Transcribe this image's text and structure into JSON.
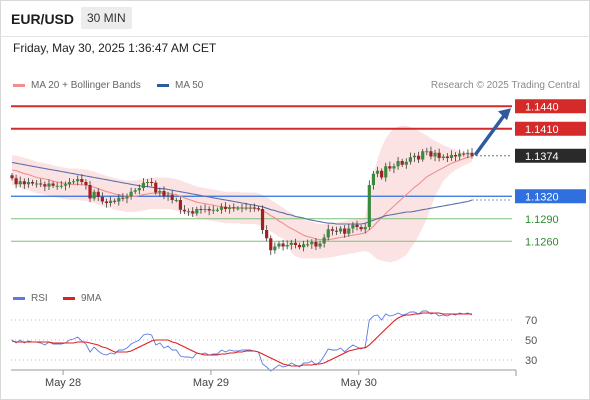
{
  "header": {
    "symbol": "EUR/USD",
    "timeframe": "30 MIN"
  },
  "datetime": "Friday, May 30, 2025 1:36:47 AM CET",
  "legend": {
    "ma20_label": "MA 20 + Bollinger Bands",
    "ma20_color": "#ef8f8f",
    "ma50_label": "MA 50",
    "ma50_color": "#2f5b9e",
    "rsi_label": "RSI",
    "rsi_color": "#5b7be0",
    "ma9_label": "9MA",
    "ma9_color": "#e01f1f"
  },
  "copyright": "Research © 2025 Trading Central",
  "chart_data": [
    {
      "type": "candlestick",
      "ylim": [
        1.1215,
        1.1455
      ],
      "x_ticks": [
        "May 28",
        "May 29",
        "May 30"
      ],
      "current_price": "1.1374",
      "levels": [
        {
          "label": "1.1440",
          "value": 1.144,
          "kind": "resistance"
        },
        {
          "label": "1.1410",
          "value": 1.141,
          "kind": "resistance"
        },
        {
          "label": "1.1320",
          "value": 1.132,
          "kind": "pivot"
        },
        {
          "label": "1.1290",
          "value": 1.129,
          "kind": "support"
        },
        {
          "label": "1.1260",
          "value": 1.126,
          "kind": "support"
        }
      ],
      "close": [
        1.1344,
        1.1336,
        1.134,
        1.1336,
        1.1339,
        1.1337,
        1.1337,
        1.1336,
        1.1333,
        1.1337,
        1.1334,
        1.1334,
        1.1334,
        1.1336,
        1.1339,
        1.134,
        1.1343,
        1.1339,
        1.1335,
        1.1317,
        1.1326,
        1.1319,
        1.1313,
        1.1311,
        1.1314,
        1.1313,
        1.1318,
        1.1317,
        1.132,
        1.1326,
        1.1328,
        1.1331,
        1.1338,
        1.1339,
        1.1338,
        1.1325,
        1.1327,
        1.132,
        1.1322,
        1.1315,
        1.1315,
        1.1302,
        1.13,
        1.13,
        1.1297,
        1.1303,
        1.1302,
        1.1303,
        1.1301,
        1.1302,
        1.1302,
        1.1306,
        1.1303,
        1.1305,
        1.1304,
        1.1304,
        1.1305,
        1.1305,
        1.1305,
        1.1304,
        1.1303,
        1.1275,
        1.1264,
        1.1248,
        1.1253,
        1.1257,
        1.1253,
        1.1255,
        1.1258,
        1.1255,
        1.1252,
        1.1256,
        1.1256,
        1.1259,
        1.1253,
        1.1257,
        1.1265,
        1.1276,
        1.1274,
        1.1273,
        1.1277,
        1.127,
        1.1277,
        1.1282,
        1.1279,
        1.1276,
        1.1279,
        1.1335,
        1.135,
        1.1354,
        1.1345,
        1.136,
        1.1357,
        1.136,
        1.1367,
        1.1362,
        1.1366,
        1.1372,
        1.1374,
        1.1369,
        1.138,
        1.138,
        1.1373,
        1.1378,
        1.1371,
        1.1373,
        1.1371,
        1.1375,
        1.1373,
        1.1377,
        1.1376,
        1.1378,
        1.1374
      ],
      "ma20": [
        1.1355,
        1.1354,
        1.1352,
        1.135,
        1.1349,
        1.1347,
        1.1345,
        1.1344,
        1.1343,
        1.1342,
        1.134,
        1.1339,
        1.1338,
        1.1337,
        1.1336,
        1.1336,
        1.1336,
        1.1335,
        1.1335,
        1.1333,
        1.1332,
        1.133,
        1.1328,
        1.1326,
        1.1325,
        1.1323,
        1.1322,
        1.1321,
        1.132,
        1.132,
        1.132,
        1.1321,
        1.1322,
        1.1323,
        1.1324,
        1.1324,
        1.1324,
        1.1324,
        1.1324,
        1.1323,
        1.1322,
        1.132,
        1.1318,
        1.1316,
        1.1314,
        1.1312,
        1.1311,
        1.131,
        1.1309,
        1.1308,
        1.1307,
        1.1306,
        1.1305,
        1.1305,
        1.1305,
        1.1305,
        1.1304,
        1.1304,
        1.1304,
        1.1304,
        1.1303,
        1.1301,
        1.1298,
        1.1294,
        1.1291,
        1.1287,
        1.1284,
        1.128,
        1.1277,
        1.1274,
        1.1271,
        1.1268,
        1.1266,
        1.1265,
        1.1263,
        1.1262,
        1.1262,
        1.1262,
        1.1263,
        1.1264,
        1.1265,
        1.1266,
        1.1267,
        1.1268,
        1.1269,
        1.127,
        1.1271,
        1.1275,
        1.128,
        1.1286,
        1.1291,
        1.1297,
        1.1302,
        1.1307,
        1.1312,
        1.1317,
        1.1322,
        1.1327,
        1.1332,
        1.1336,
        1.1341,
        1.1346,
        1.1349,
        1.1352,
        1.1355,
        1.1358,
        1.1361,
        1.1364,
        1.1366,
        1.1368,
        1.137,
        1.1372,
        1.1373
      ],
      "ma50": [
        1.1365,
        1.1364,
        1.1363,
        1.1362,
        1.1361,
        1.136,
        1.1359,
        1.1358,
        1.1357,
        1.1356,
        1.1355,
        1.1354,
        1.1353,
        1.1352,
        1.1351,
        1.135,
        1.1349,
        1.1348,
        1.1347,
        1.1346,
        1.1345,
        1.1344,
        1.1343,
        1.1342,
        1.1341,
        1.134,
        1.1339,
        1.1338,
        1.1337,
        1.1336,
        1.1335,
        1.1334,
        1.1333,
        1.1333,
        1.1332,
        1.1331,
        1.133,
        1.133,
        1.1329,
        1.1328,
        1.1327,
        1.1326,
        1.1325,
        1.1324,
        1.1323,
        1.1322,
        1.1321,
        1.132,
        1.1319,
        1.1318,
        1.1317,
        1.1316,
        1.1315,
        1.1314,
        1.1313,
        1.1312,
        1.1311,
        1.131,
        1.1309,
        1.1308,
        1.1307,
        1.1306,
        1.1304,
        1.1302,
        1.1301,
        1.1299,
        1.1298,
        1.1296,
        1.1295,
        1.1293,
        1.1292,
        1.1291,
        1.1289,
        1.1288,
        1.1287,
        1.1286,
        1.1285,
        1.1284,
        1.1284,
        1.1283,
        1.1283,
        1.1283,
        1.1283,
        1.1283,
        1.1283,
        1.1283,
        1.1284,
        1.1286,
        1.1288,
        1.129,
        1.1292,
        1.1294,
        1.1295,
        1.1296,
        1.1297,
        1.1298,
        1.1299,
        1.1299,
        1.13,
        1.1301,
        1.1302,
        1.1303,
        1.1304,
        1.1305,
        1.1306,
        1.1307,
        1.1308,
        1.1309,
        1.131,
        1.1311,
        1.1312,
        1.1313,
        1.1315
      ],
      "bb_upper": [
        1.1375,
        1.1374,
        1.1373,
        1.1371,
        1.137,
        1.1368,
        1.1366,
        1.1365,
        1.1364,
        1.1363,
        1.1361,
        1.136,
        1.1359,
        1.1358,
        1.1357,
        1.1357,
        1.1357,
        1.1356,
        1.1356,
        1.1354,
        1.1353,
        1.1351,
        1.1349,
        1.1347,
        1.1346,
        1.1344,
        1.1343,
        1.1342,
        1.1341,
        1.1341,
        1.1341,
        1.1342,
        1.1343,
        1.1344,
        1.1345,
        1.1345,
        1.1345,
        1.1345,
        1.1345,
        1.1344,
        1.1343,
        1.1341,
        1.1339,
        1.1337,
        1.1335,
        1.1333,
        1.1332,
        1.1331,
        1.133,
        1.1329,
        1.1328,
        1.1327,
        1.1326,
        1.1326,
        1.1326,
        1.1326,
        1.1325,
        1.1325,
        1.1325,
        1.1325,
        1.1324,
        1.1322,
        1.1319,
        1.1315,
        1.1312,
        1.1308,
        1.1305,
        1.1301,
        1.1298,
        1.1295,
        1.1292,
        1.1289,
        1.1287,
        1.1286,
        1.1284,
        1.1283,
        1.1283,
        1.1283,
        1.1284,
        1.1285,
        1.1286,
        1.1287,
        1.1288,
        1.1289,
        1.129,
        1.1291,
        1.1292,
        1.132,
        1.1348,
        1.137,
        1.1385,
        1.1397,
        1.1405,
        1.141,
        1.1413,
        1.1414,
        1.1414,
        1.1412,
        1.141,
        1.1407,
        1.1404,
        1.1401,
        1.1397,
        1.1394,
        1.1391,
        1.1388,
        1.1386,
        1.1384,
        1.1382,
        1.138,
        1.1378,
        1.1377,
        1.1375
      ],
      "bb_lower": [
        1.1335,
        1.1334,
        1.1331,
        1.1329,
        1.1328,
        1.1326,
        1.1324,
        1.1323,
        1.1322,
        1.1321,
        1.1319,
        1.1318,
        1.1317,
        1.1316,
        1.1315,
        1.1315,
        1.1315,
        1.1314,
        1.1314,
        1.1312,
        1.1311,
        1.1309,
        1.1307,
        1.1305,
        1.1304,
        1.1302,
        1.1301,
        1.13,
        1.1299,
        1.1299,
        1.1299,
        1.13,
        1.1301,
        1.1302,
        1.1303,
        1.1303,
        1.1303,
        1.1303,
        1.1303,
        1.1302,
        1.1301,
        1.1299,
        1.1297,
        1.1295,
        1.1293,
        1.1291,
        1.129,
        1.1289,
        1.1288,
        1.1287,
        1.1286,
        1.1285,
        1.1284,
        1.1284,
        1.1284,
        1.1284,
        1.1283,
        1.1283,
        1.1283,
        1.1283,
        1.1282,
        1.128,
        1.1277,
        1.1273,
        1.127,
        1.1266,
        1.1263,
        1.1259,
        1.1245,
        1.124,
        1.1238,
        1.1237,
        1.1237,
        1.1237,
        1.1237,
        1.1237,
        1.1238,
        1.1238,
        1.1239,
        1.124,
        1.1241,
        1.1242,
        1.1243,
        1.1244,
        1.1245,
        1.1246,
        1.1247,
        1.1245,
        1.124,
        1.1236,
        1.1234,
        1.1233,
        1.1232,
        1.1233,
        1.1235,
        1.1238,
        1.1242,
        1.125,
        1.1258,
        1.1267,
        1.1278,
        1.129,
        1.1305,
        1.132,
        1.133,
        1.134,
        1.1346,
        1.1351,
        1.1355,
        1.1358,
        1.1361,
        1.1363,
        1.1366
      ]
    },
    {
      "type": "line",
      "ylim": [
        15,
        85
      ],
      "y_ticks": [
        "70",
        "50",
        "30"
      ],
      "rsi": [
        50,
        47,
        50,
        47,
        49,
        48,
        48,
        47,
        45,
        48,
        46,
        46,
        46,
        47,
        50,
        51,
        53,
        49,
        46,
        38,
        43,
        39,
        36,
        35,
        37,
        36,
        40,
        40,
        42,
        46,
        48,
        50,
        55,
        56,
        55,
        45,
        47,
        42,
        44,
        40,
        40,
        34,
        33,
        33,
        32,
        37,
        36,
        37,
        35,
        36,
        36,
        40,
        38,
        40,
        39,
        39,
        40,
        40,
        40,
        39,
        38,
        26,
        23,
        19,
        22,
        25,
        23,
        24,
        27,
        25,
        23,
        27,
        27,
        29,
        25,
        28,
        34,
        41,
        40,
        40,
        42,
        38,
        42,
        45,
        43,
        41,
        43,
        70,
        74,
        75,
        70,
        76,
        74,
        75,
        77,
        75,
        76,
        78,
        78,
        76,
        79,
        79,
        76,
        77,
        74,
        75,
        74,
        76,
        75,
        77,
        76,
        77,
        75
      ],
      "ma9": [
        49,
        48,
        48,
        48,
        48,
        48,
        48,
        48,
        48,
        48,
        47,
        47,
        47,
        47,
        47,
        47,
        48,
        48,
        48,
        47,
        46,
        45,
        43,
        42,
        40,
        38,
        38,
        38,
        38,
        39,
        41,
        43,
        45,
        47,
        49,
        50,
        50,
        50,
        50,
        48,
        47,
        45,
        43,
        41,
        39,
        37,
        36,
        35,
        35,
        35,
        35,
        36,
        36,
        37,
        37,
        38,
        38,
        39,
        39,
        39,
        38,
        36,
        34,
        32,
        30,
        28,
        26,
        25,
        24,
        24,
        24,
        25,
        25,
        25,
        26,
        26,
        27,
        29,
        31,
        33,
        35,
        37,
        39,
        40,
        41,
        42,
        42,
        45,
        49,
        53,
        57,
        61,
        65,
        69,
        72,
        74,
        75,
        75,
        76,
        76,
        77,
        77,
        77,
        77,
        77,
        76,
        76,
        76,
        76,
        76,
        76,
        76,
        76
      ]
    }
  ]
}
